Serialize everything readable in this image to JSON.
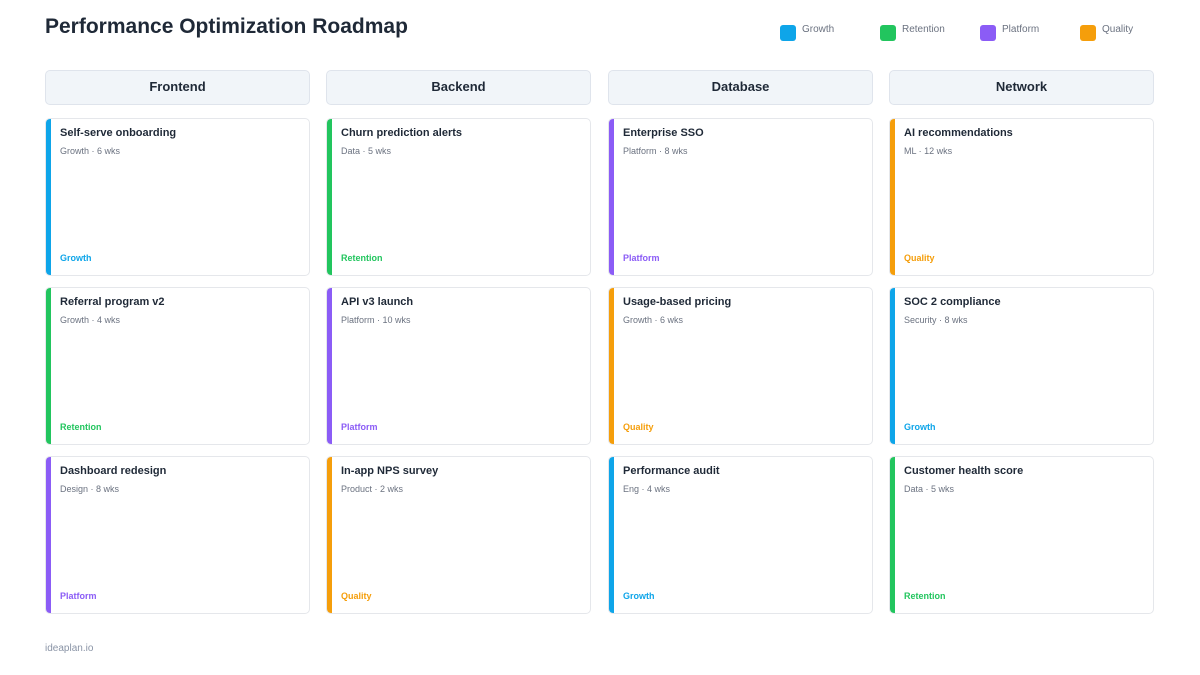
{
  "title": "Performance Optimization Roadmap",
  "legend": [
    {
      "label": "Growth",
      "color": "#0ea5e9"
    },
    {
      "label": "Retention",
      "color": "#22c55e"
    },
    {
      "label": "Platform",
      "color": "#8b5cf6"
    },
    {
      "label": "Quality",
      "color": "#f59e0b"
    }
  ],
  "columns": [
    {
      "name": "Frontend",
      "cards": [
        {
          "title": "Self-serve onboarding",
          "meta": "Growth · 6 wks",
          "tag": "Growth",
          "color": "#0ea5e9"
        },
        {
          "title": "Referral program v2",
          "meta": "Growth · 4 wks",
          "tag": "Retention",
          "color": "#22c55e"
        },
        {
          "title": "Dashboard redesign",
          "meta": "Design · 8 wks",
          "tag": "Platform",
          "color": "#8b5cf6"
        }
      ]
    },
    {
      "name": "Backend",
      "cards": [
        {
          "title": "Churn prediction alerts",
          "meta": "Data · 5 wks",
          "tag": "Retention",
          "color": "#22c55e"
        },
        {
          "title": "API v3 launch",
          "meta": "Platform · 10 wks",
          "tag": "Platform",
          "color": "#8b5cf6"
        },
        {
          "title": "In-app NPS survey",
          "meta": "Product · 2 wks",
          "tag": "Quality",
          "color": "#f59e0b"
        }
      ]
    },
    {
      "name": "Database",
      "cards": [
        {
          "title": "Enterprise SSO",
          "meta": "Platform · 8 wks",
          "tag": "Platform",
          "color": "#8b5cf6"
        },
        {
          "title": "Usage-based pricing",
          "meta": "Growth · 6 wks",
          "tag": "Quality",
          "color": "#f59e0b"
        },
        {
          "title": "Performance audit",
          "meta": "Eng · 4 wks",
          "tag": "Growth",
          "color": "#0ea5e9"
        }
      ]
    },
    {
      "name": "Network",
      "cards": [
        {
          "title": "AI recommendations",
          "meta": "ML · 12 wks",
          "tag": "Quality",
          "color": "#f59e0b"
        },
        {
          "title": "SOC 2 compliance",
          "meta": "Security · 8 wks",
          "tag": "Growth",
          "color": "#0ea5e9"
        },
        {
          "title": "Customer health score",
          "meta": "Data · 5 wks",
          "tag": "Retention",
          "color": "#22c55e"
        }
      ]
    }
  ],
  "footer": "ideaplan.io"
}
